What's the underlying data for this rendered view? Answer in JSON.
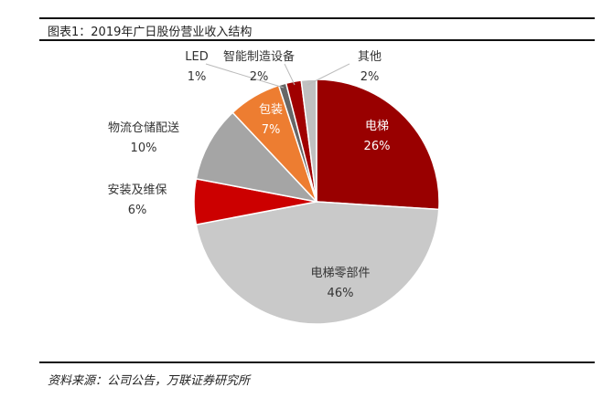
{
  "title": "图表1：2019年广日股份营业收入结构",
  "source": "资料来源：公司公告，万联证券研究所",
  "chart_data": {
    "type": "pie",
    "title": "图表1：2019年广日股份营业收入结构",
    "start": "12 o'clock",
    "direction": "clockwise",
    "slices": [
      {
        "label": "电梯",
        "value": 26,
        "pct": "26%",
        "color": "#990000"
      },
      {
        "label": "电梯零部件",
        "value": 46,
        "pct": "46%",
        "color": "#c9c9c9"
      },
      {
        "label": "安装及维保",
        "value": 6,
        "pct": "6%",
        "color": "#cc0000"
      },
      {
        "label": "物流仓储配送",
        "value": 10,
        "pct": "10%",
        "color": "#a5a5a5"
      },
      {
        "label": "包装",
        "value": 7,
        "pct": "7%",
        "color": "#ed7d31"
      },
      {
        "label": "LED",
        "value": 1,
        "pct": "1%",
        "color": "#666666"
      },
      {
        "label": "智能制造设备",
        "value": 2,
        "pct": "2%",
        "color": "#a00000"
      },
      {
        "label": "其他",
        "value": 2,
        "pct": "2%",
        "color": "#c0c0c0"
      }
    ]
  }
}
